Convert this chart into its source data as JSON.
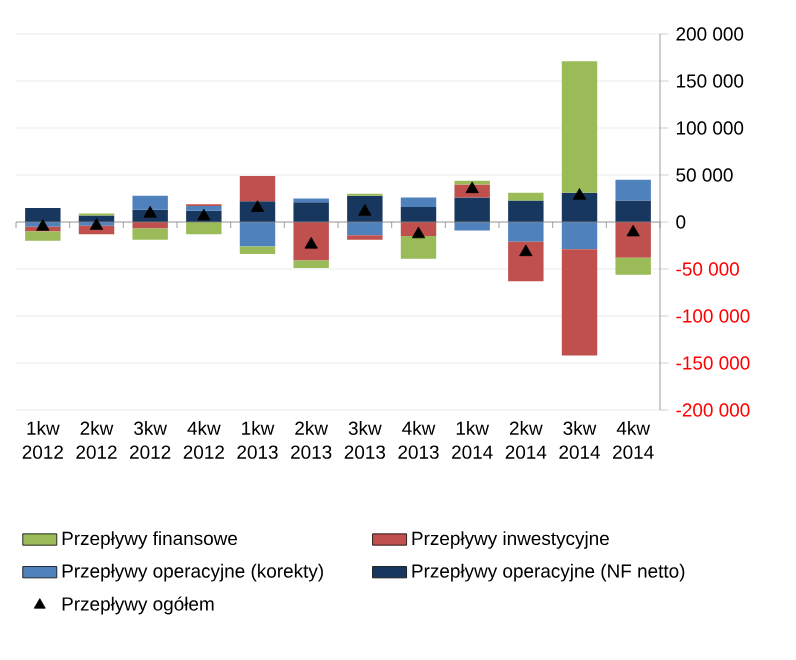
{
  "chart_data": {
    "type": "bar",
    "stacked": true,
    "categories": [
      "1kw 2012",
      "2kw 2012",
      "3kw 2012",
      "4kw 2012",
      "1kw 2013",
      "2kw 2013",
      "3kw 2013",
      "4kw 2013",
      "1kw 2014",
      "2kw 2014",
      "3kw 2014",
      "4kw 2014"
    ],
    "series": [
      {
        "name": "Przepływy operacyjne (NF netto)",
        "color": "#17375e",
        "values": [
          15000,
          7000,
          13000,
          12000,
          22000,
          21000,
          28000,
          16000,
          26000,
          23000,
          31000,
          23000
        ]
      },
      {
        "name": "Przepływy operacyjne (korekty)",
        "color": "#4f81bd",
        "values": [
          -5000,
          -4000,
          15000,
          5000,
          -26000,
          4000,
          -14000,
          10000,
          -9000,
          -21000,
          -29000,
          22000
        ]
      },
      {
        "name": "Przepływy inwestycyjne",
        "color": "#c0504d",
        "values": [
          -5000,
          -9000,
          -7000,
          2000,
          27000,
          -41000,
          -5000,
          -15000,
          14000,
          -42000,
          -113000,
          -38000
        ]
      },
      {
        "name": "Przepływy finansowe",
        "color": "#9bbb59",
        "values": [
          -10000,
          2000,
          -12000,
          -13000,
          -8000,
          -8000,
          2000,
          -24000,
          4000,
          8000,
          140000,
          -18000
        ]
      },
      {
        "name": "Przepływy ogółem",
        "type": "scatter",
        "marker": "triangle",
        "color": "#000000",
        "x": [
          "1kw 2012",
          "2kw 2012",
          "3kw 2012",
          "4kw 2012",
          "1kw 2013",
          "2kw 2013",
          "3kw 2013",
          "4kw 2013",
          "1kw 2014",
          "2kw 2014",
          "3kw 2014",
          "4kw 2014"
        ],
        "values": [
          -5000,
          -4000,
          9000,
          6000,
          15000,
          -24000,
          11000,
          -13000,
          35000,
          -32000,
          28000,
          -11000
        ]
      }
    ],
    "ylim": [
      -200000,
      200000
    ],
    "yticks": [
      {
        "value": -200000,
        "label": "-200 000"
      },
      {
        "value": -150000,
        "label": "-150 000"
      },
      {
        "value": -100000,
        "label": "-100 000"
      },
      {
        "value": -50000,
        "label": "-50 000"
      },
      {
        "value": 0,
        "label": "0"
      },
      {
        "value": 50000,
        "label": "50 000"
      },
      {
        "value": 100000,
        "label": "100 000"
      },
      {
        "value": 150000,
        "label": "150 000"
      },
      {
        "value": 200000,
        "label": "200 000"
      }
    ],
    "grid": "y",
    "legend": "bottom"
  }
}
